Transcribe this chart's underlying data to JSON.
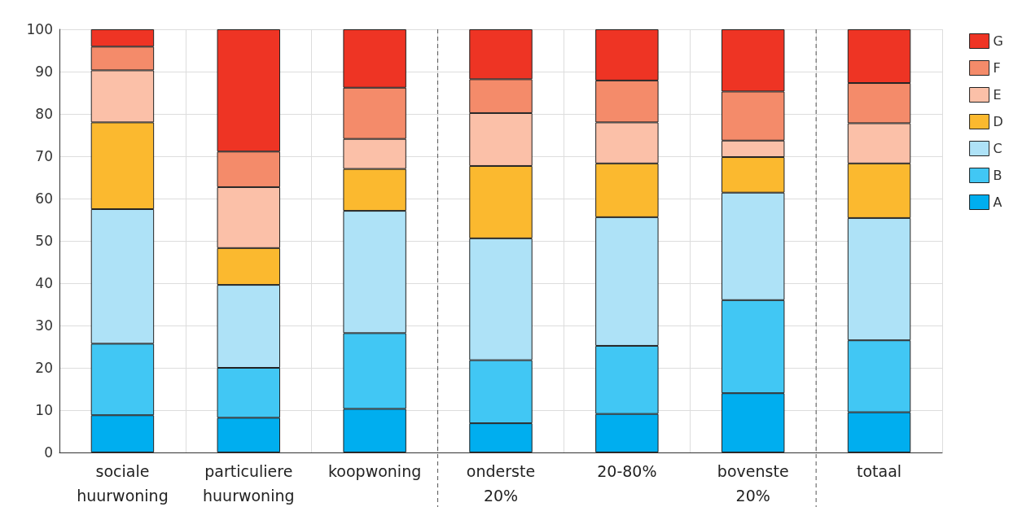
{
  "chart_data": {
    "type": "bar",
    "stacked": true,
    "categories": [
      "sociale huurwoning",
      "particuliere huurwoning",
      "koopwoning",
      "onderste 20%",
      "20-80%",
      "bovenste 20%",
      "totaal"
    ],
    "series": [
      {
        "name": "A",
        "color": "#00aeef",
        "values": [
          8.8,
          8.2,
          10.3,
          6.9,
          9.1,
          14,
          9.5
        ]
      },
      {
        "name": "B",
        "color": "#41c7f4",
        "values": [
          16.9,
          11.8,
          17.9,
          14.9,
          16.1,
          22,
          17
        ]
      },
      {
        "name": "C",
        "color": "#aee2f7",
        "values": [
          31.8,
          19.6,
          28.9,
          28.8,
          30.4,
          25.4,
          28.9
        ]
      },
      {
        "name": "D",
        "color": "#fbb92f",
        "values": [
          20.5,
          8.7,
          9.9,
          17.1,
          12.7,
          8.4,
          12.9
        ]
      },
      {
        "name": "E",
        "color": "#fbc0a8",
        "values": [
          12.3,
          14.4,
          7.1,
          12.5,
          9.7,
          3.9,
          9.5
        ]
      },
      {
        "name": "F",
        "color": "#f48b6a",
        "values": [
          5.6,
          8.4,
          12.1,
          8,
          9.9,
          11.6,
          9.5
        ]
      },
      {
        "name": "G",
        "color": "#ee3424",
        "values": [
          4.1,
          28.9,
          13.8,
          11.8,
          12.1,
          14.7,
          12.7
        ]
      }
    ],
    "ylim": [
      0,
      100
    ],
    "yticks": [
      0,
      10,
      20,
      30,
      40,
      50,
      60,
      70,
      80,
      90,
      100
    ],
    "grid": true,
    "legend": "right"
  }
}
